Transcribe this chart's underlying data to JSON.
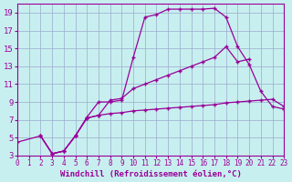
{
  "bg_color": "#c8efef",
  "line_color": "#990099",
  "grid_color": "#99aacc",
  "xlim": [
    0,
    23
  ],
  "ylim": [
    3,
    20
  ],
  "xticks": [
    0,
    1,
    2,
    3,
    4,
    5,
    6,
    7,
    8,
    9,
    10,
    11,
    12,
    13,
    14,
    15,
    16,
    17,
    18,
    19,
    20,
    21,
    22,
    23
  ],
  "yticks": [
    3,
    5,
    7,
    9,
    11,
    13,
    15,
    17,
    19
  ],
  "line1_x": [
    0,
    2,
    3,
    4,
    5,
    6,
    7,
    8,
    9,
    10,
    11,
    12,
    13,
    14,
    15,
    16,
    17,
    18,
    19,
    20,
    21,
    22,
    23
  ],
  "line1_y": [
    4.5,
    5.2,
    3.2,
    3.5,
    5.2,
    7.3,
    9.0,
    9.0,
    9.2,
    14.0,
    18.5,
    18.8,
    19.4,
    19.4,
    19.4,
    19.4,
    19.5,
    18.5,
    15.2,
    13.2,
    10.2,
    8.5,
    8.2
  ],
  "line2_x": [
    2,
    3,
    4,
    5,
    6,
    7,
    8,
    9,
    10,
    11,
    12,
    13,
    14,
    15,
    16,
    17,
    18,
    19,
    20
  ],
  "line2_y": [
    5.2,
    3.2,
    3.5,
    5.2,
    7.2,
    7.5,
    9.2,
    9.4,
    10.5,
    11.0,
    11.5,
    12.0,
    12.5,
    13.0,
    13.5,
    14.0,
    15.2,
    13.5,
    13.8
  ],
  "line3_x": [
    2,
    3,
    4,
    5,
    6,
    7,
    8,
    9,
    10,
    11,
    12,
    13,
    14,
    15,
    16,
    17,
    18,
    19,
    20,
    21,
    22,
    23
  ],
  "line3_y": [
    5.2,
    3.2,
    3.5,
    5.2,
    7.2,
    7.5,
    7.7,
    7.8,
    8.0,
    8.1,
    8.2,
    8.3,
    8.4,
    8.5,
    8.6,
    8.7,
    8.9,
    9.0,
    9.1,
    9.2,
    9.3,
    8.5
  ],
  "xlabel": "Windchill (Refroidissement éolien,°C)",
  "xlabel_fontsize": 6.5,
  "tick_fontsize_x": 5.5,
  "tick_fontsize_y": 6.5
}
